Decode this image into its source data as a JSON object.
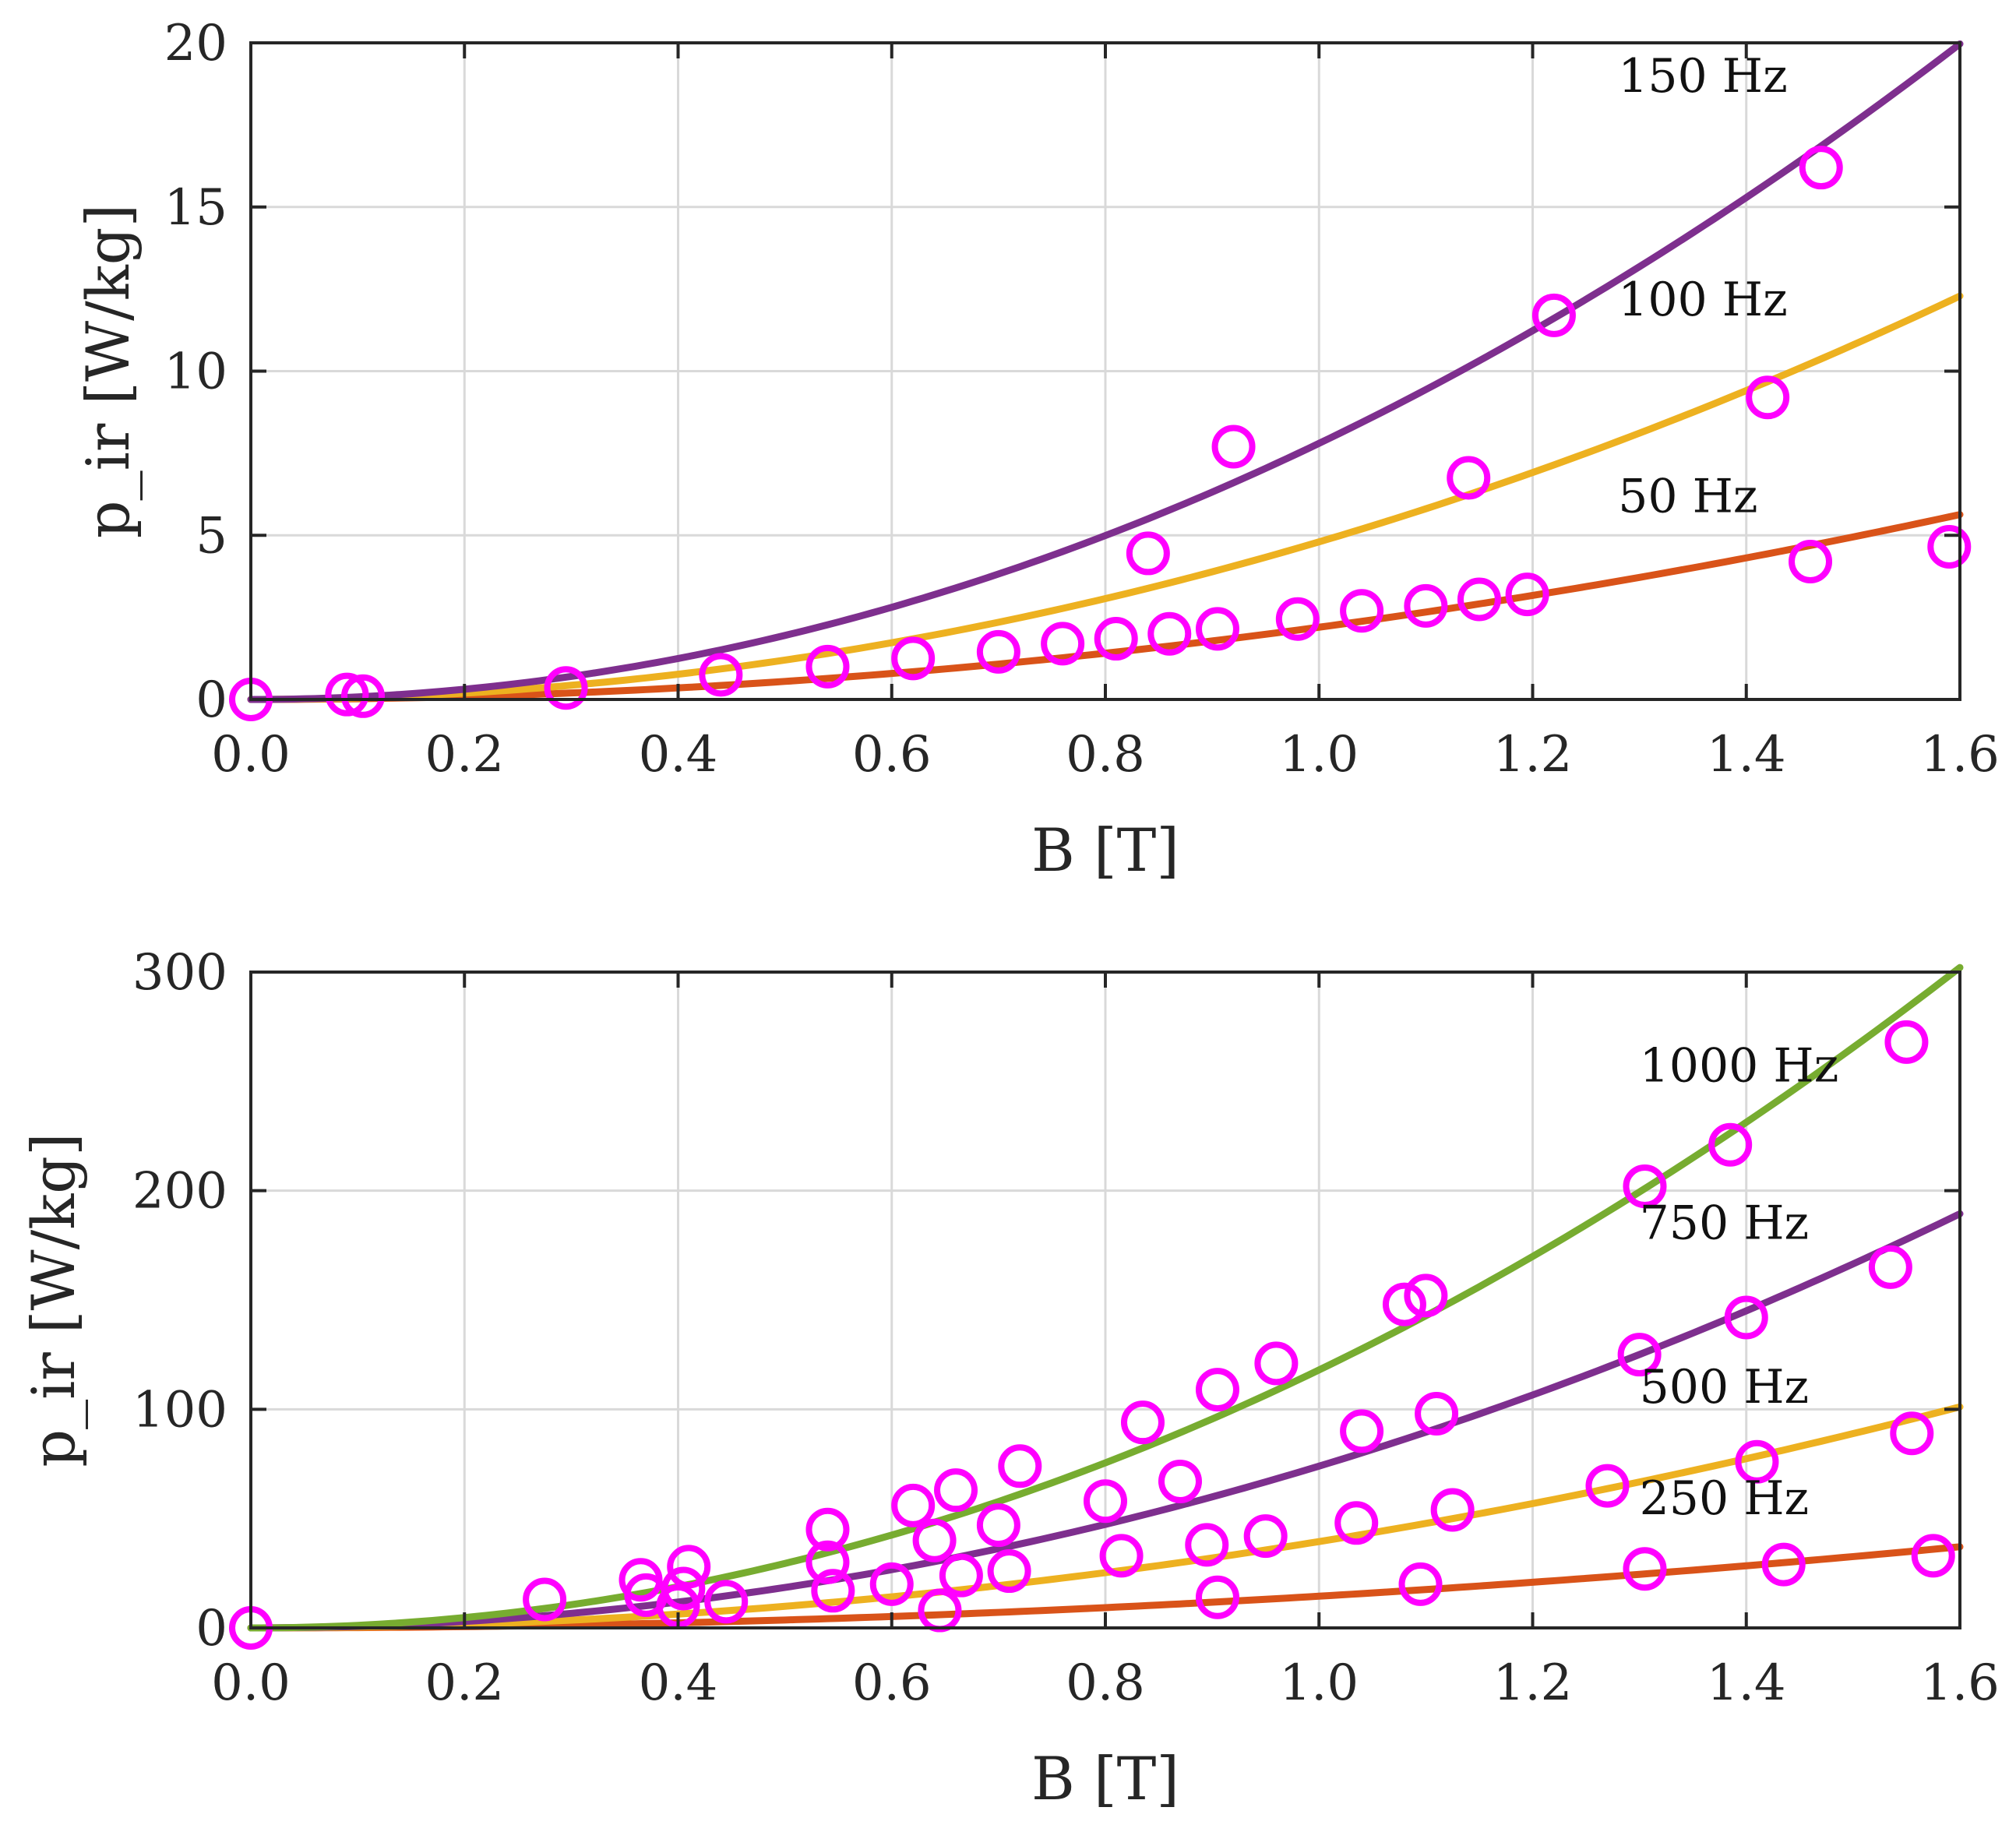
{
  "chart_data": [
    {
      "type": "scatter",
      "title": "",
      "xlabel": "B [T]",
      "ylabel": "p_ir [W/kg]",
      "xlim": [
        0,
        1.6
      ],
      "ylim": [
        0,
        20
      ],
      "xticks": [
        "0.0",
        "0.2",
        "0.4",
        "0.6",
        "0.8",
        "1.0",
        "1.2",
        "1.4",
        "1.6"
      ],
      "yticks": [
        "0",
        "5",
        "10",
        "15",
        "20"
      ],
      "grid": true,
      "fits": [
        {
          "name": "50 Hz",
          "color": "#D95319",
          "coef": 2.2,
          "exponent": 2.0
        },
        {
          "name": "100 Hz",
          "color": "#EDB120",
          "coef": 4.8,
          "exponent": 2.0
        },
        {
          "name": "150 Hz",
          "color": "#7E2F8E",
          "coef": 7.8,
          "exponent": 2.0
        }
      ],
      "markers": {
        "color": "#FF00FF",
        "x": [
          0.0,
          0.09,
          0.105,
          0.295,
          0.44,
          0.54,
          0.62,
          0.7,
          0.76,
          0.81,
          0.86,
          0.905,
          0.98,
          1.04,
          1.1,
          1.15,
          1.195,
          0.84,
          0.92,
          1.14,
          1.42,
          1.22,
          1.46,
          1.47,
          1.59
        ],
        "y": [
          0.0,
          0.15,
          0.1,
          0.35,
          0.75,
          1.0,
          1.25,
          1.45,
          1.7,
          1.85,
          2.0,
          2.15,
          2.45,
          2.7,
          2.85,
          3.05,
          3.2,
          4.45,
          7.7,
          6.75,
          9.2,
          11.7,
          4.2,
          16.2,
          4.65
        ]
      },
      "annotations": [
        {
          "text": "150 Hz",
          "x": 1.28,
          "y": 18.5
        },
        {
          "text": "100 Hz",
          "x": 1.28,
          "y": 11.7
        },
        {
          "text": "50 Hz",
          "x": 1.28,
          "y": 5.7
        }
      ]
    },
    {
      "type": "scatter",
      "title": "",
      "xlabel": "B [T]",
      "ylabel": "p_ir [W/kg]",
      "xlim": [
        0,
        1.6
      ],
      "ylim": [
        0,
        300
      ],
      "xticks": [
        "0.0",
        "0.2",
        "0.4",
        "0.6",
        "0.8",
        "1.0",
        "1.2",
        "1.4",
        "1.6"
      ],
      "yticks": [
        "0",
        "100",
        "200",
        "300"
      ],
      "grid": true,
      "fits": [
        {
          "name": "250 Hz",
          "color": "#D95319",
          "coef": 14.5,
          "exponent": 2.0
        },
        {
          "name": "500 Hz",
          "color": "#EDB120",
          "coef": 39.5,
          "exponent": 2.0
        },
        {
          "name": "750 Hz",
          "color": "#7E2F8E",
          "coef": 74.0,
          "exponent": 2.0
        },
        {
          "name": "1000 Hz",
          "color": "#77AC30",
          "coef": 118.0,
          "exponent": 2.0
        }
      ],
      "markers": {
        "color": "#FF00FF",
        "x": [
          0.0,
          0.275,
          0.365,
          0.37,
          0.4,
          0.405,
          0.41,
          0.445,
          0.54,
          0.54,
          0.545,
          0.6,
          0.62,
          0.64,
          0.645,
          0.66,
          0.665,
          0.7,
          0.71,
          0.72,
          0.8,
          0.815,
          0.835,
          0.87,
          0.895,
          0.905,
          0.905,
          0.95,
          0.96,
          1.035,
          1.04,
          1.08,
          1.095,
          1.1,
          1.11,
          1.125,
          1.27,
          1.3,
          1.305,
          1.305,
          1.385,
          1.4,
          1.41,
          1.435,
          1.535,
          1.55,
          1.555,
          1.575
        ],
        "y": [
          0.0,
          13.0,
          22.0,
          15.0,
          10.0,
          18.0,
          28.0,
          12.0,
          45.0,
          30.0,
          17.0,
          20.0,
          56.0,
          40.0,
          8.0,
          63.0,
          24.0,
          47.0,
          26.0,
          74.0,
          58.0,
          33.0,
          94.0,
          67.0,
          38.0,
          109.0,
          14.0,
          42.0,
          121.0,
          48.0,
          90.0,
          148.0,
          20.0,
          152.0,
          98.0,
          54.0,
          65.0,
          125.0,
          27.0,
          202.0,
          221.0,
          142.0,
          76.0,
          29.0,
          165.0,
          268.0,
          89.0,
          33.0
        ]
      },
      "annotations": [
        {
          "text": "1000 Hz",
          "x": 1.3,
          "y": 250
        },
        {
          "text": "750 Hz",
          "x": 1.3,
          "y": 178
        },
        {
          "text": "500 Hz",
          "x": 1.3,
          "y": 103
        },
        {
          "text": "250 Hz",
          "x": 1.3,
          "y": 52
        }
      ]
    }
  ]
}
